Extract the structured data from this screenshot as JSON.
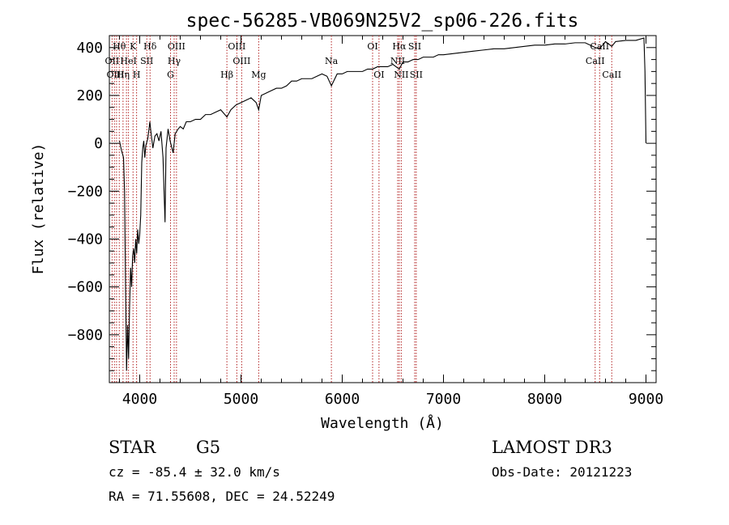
{
  "chart_data": {
    "type": "line",
    "title": "spec-56285-VB069N25V2_sp06-226.fits",
    "xlabel": "Wavelength (Å)",
    "ylabel": "Flux (relative)",
    "xlim": [
      3700,
      9100
    ],
    "ylim": [
      -1000,
      450
    ],
    "x_ticks": [
      4000,
      5000,
      6000,
      7000,
      8000,
      9000
    ],
    "y_ticks": [
      400,
      200,
      0,
      -200,
      -400,
      -600,
      -800
    ],
    "grid": false,
    "line_color": "#000000",
    "marker_color": "#b22222",
    "series": [
      {
        "points": [
          [
            3800,
            10
          ],
          [
            3820,
            -30
          ],
          [
            3840,
            -60
          ],
          [
            3850,
            -200
          ],
          [
            3860,
            -600
          ],
          [
            3870,
            -950
          ],
          [
            3880,
            -760
          ],
          [
            3890,
            -900
          ],
          [
            3900,
            -680
          ],
          [
            3910,
            -520
          ],
          [
            3920,
            -600
          ],
          [
            3930,
            -470
          ],
          [
            3940,
            -440
          ],
          [
            3950,
            -500
          ],
          [
            3960,
            -400
          ],
          [
            3970,
            -460
          ],
          [
            3980,
            -360
          ],
          [
            3990,
            -420
          ],
          [
            4000,
            -380
          ],
          [
            4010,
            -300
          ],
          [
            4020,
            -80
          ],
          [
            4030,
            -20
          ],
          [
            4040,
            10
          ],
          [
            4050,
            -60
          ],
          [
            4060,
            -10
          ],
          [
            4080,
            20
          ],
          [
            4100,
            90
          ],
          [
            4110,
            50
          ],
          [
            4130,
            -20
          ],
          [
            4150,
            30
          ],
          [
            4170,
            40
          ],
          [
            4190,
            10
          ],
          [
            4210,
            50
          ],
          [
            4230,
            -60
          ],
          [
            4250,
            -330
          ],
          [
            4260,
            -20
          ],
          [
            4280,
            60
          ],
          [
            4300,
            10
          ],
          [
            4330,
            -40
          ],
          [
            4350,
            40
          ],
          [
            4380,
            60
          ],
          [
            4400,
            70
          ],
          [
            4430,
            60
          ],
          [
            4460,
            90
          ],
          [
            4500,
            90
          ],
          [
            4550,
            100
          ],
          [
            4600,
            100
          ],
          [
            4650,
            120
          ],
          [
            4700,
            120
          ],
          [
            4750,
            130
          ],
          [
            4800,
            140
          ],
          [
            4861,
            110
          ],
          [
            4900,
            140
          ],
          [
            4950,
            160
          ],
          [
            5000,
            170
          ],
          [
            5050,
            180
          ],
          [
            5100,
            190
          ],
          [
            5150,
            170
          ],
          [
            5175,
            140
          ],
          [
            5200,
            200
          ],
          [
            5250,
            210
          ],
          [
            5300,
            220
          ],
          [
            5350,
            230
          ],
          [
            5400,
            230
          ],
          [
            5450,
            240
          ],
          [
            5500,
            260
          ],
          [
            5550,
            260
          ],
          [
            5600,
            270
          ],
          [
            5650,
            270
          ],
          [
            5700,
            270
          ],
          [
            5750,
            280
          ],
          [
            5800,
            290
          ],
          [
            5850,
            280
          ],
          [
            5893,
            240
          ],
          [
            5950,
            290
          ],
          [
            6000,
            290
          ],
          [
            6050,
            300
          ],
          [
            6100,
            300
          ],
          [
            6150,
            300
          ],
          [
            6200,
            300
          ],
          [
            6250,
            310
          ],
          [
            6300,
            310
          ],
          [
            6350,
            320
          ],
          [
            6400,
            320
          ],
          [
            6450,
            320
          ],
          [
            6500,
            330
          ],
          [
            6563,
            310
          ],
          [
            6600,
            340
          ],
          [
            6650,
            340
          ],
          [
            6700,
            350
          ],
          [
            6750,
            350
          ],
          [
            6800,
            360
          ],
          [
            6850,
            360
          ],
          [
            6900,
            360
          ],
          [
            6950,
            370
          ],
          [
            7000,
            370
          ],
          [
            7100,
            375
          ],
          [
            7200,
            380
          ],
          [
            7300,
            385
          ],
          [
            7400,
            390
          ],
          [
            7500,
            395
          ],
          [
            7600,
            395
          ],
          [
            7700,
            400
          ],
          [
            7800,
            405
          ],
          [
            7900,
            410
          ],
          [
            8000,
            410
          ],
          [
            8100,
            415
          ],
          [
            8200,
            415
          ],
          [
            8300,
            420
          ],
          [
            8400,
            420
          ],
          [
            8498,
            400
          ],
          [
            8542,
            395
          ],
          [
            8600,
            425
          ],
          [
            8662,
            405
          ],
          [
            8700,
            425
          ],
          [
            8800,
            430
          ],
          [
            8900,
            430
          ],
          [
            8980,
            440
          ],
          [
            8990,
            300
          ],
          [
            9000,
            0
          ]
        ]
      }
    ],
    "lines": [
      {
        "x": 3727,
        "labels": [
          "OII"
        ]
      },
      {
        "x": 3750,
        "labels": [
          "Hθ"
        ]
      },
      {
        "x": 3771,
        "labels": [
          "Hη"
        ]
      },
      {
        "x": 3798,
        "labels": [
          "Hθ"
        ]
      },
      {
        "x": 3835,
        "labels": [
          "Hη"
        ]
      },
      {
        "x": 3869,
        "labels": [
          "NeIII"
        ]
      },
      {
        "x": 3889,
        "labels": [
          "HeI"
        ]
      },
      {
        "x": 3934,
        "labels": [
          "K"
        ]
      },
      {
        "x": 3969,
        "labels": [
          "H"
        ]
      },
      {
        "x": 4070,
        "labels": [
          "SII"
        ]
      },
      {
        "x": 4102,
        "labels": [
          "Hδ"
        ]
      },
      {
        "x": 4304,
        "labels": [
          "G"
        ]
      },
      {
        "x": 4340,
        "labels": [
          "Hγ"
        ]
      },
      {
        "x": 4363,
        "labels": [
          "OIII"
        ]
      },
      {
        "x": 4861,
        "labels": [
          "Hβ"
        ]
      },
      {
        "x": 4959,
        "labels": [
          "OIII"
        ]
      },
      {
        "x": 5007,
        "labels": [
          "OIII"
        ]
      },
      {
        "x": 5175,
        "labels": [
          "Mg"
        ]
      },
      {
        "x": 5893,
        "labels": [
          "Na"
        ]
      },
      {
        "x": 6300,
        "labels": [
          "OI"
        ]
      },
      {
        "x": 6363,
        "labels": [
          "OI"
        ]
      },
      {
        "x": 6548,
        "labels": [
          "NII"
        ]
      },
      {
        "x": 6563,
        "labels": [
          "Hα"
        ]
      },
      {
        "x": 6583,
        "labels": [
          "NII"
        ]
      },
      {
        "x": 6716,
        "labels": [
          "SII"
        ]
      },
      {
        "x": 6731,
        "labels": [
          "SII"
        ]
      },
      {
        "x": 8498,
        "labels": [
          "CaII"
        ]
      },
      {
        "x": 8542,
        "labels": [
          "CaII"
        ]
      },
      {
        "x": 8662,
        "labels": [
          "CaII"
        ]
      }
    ],
    "line_labels": [
      {
        "text": "Hθ",
        "x": 3798,
        "row": 0
      },
      {
        "text": "K",
        "x": 3934,
        "row": 0
      },
      {
        "text": "Hδ",
        "x": 4102,
        "row": 0
      },
      {
        "text": "OIII",
        "x": 4363,
        "row": 0
      },
      {
        "text": "OIII",
        "x": 4959,
        "row": 0
      },
      {
        "text": "OI",
        "x": 6300,
        "row": 0
      },
      {
        "text": "Hα",
        "x": 6563,
        "row": 0
      },
      {
        "text": "SII",
        "x": 6716,
        "row": 0
      },
      {
        "text": "CaII",
        "x": 8542,
        "row": 0
      },
      {
        "text": "OII",
        "x": 3727,
        "row": 1
      },
      {
        "text": "HeI",
        "x": 3889,
        "row": 1
      },
      {
        "text": "SII",
        "x": 4070,
        "row": 1
      },
      {
        "text": "Hγ",
        "x": 4340,
        "row": 1
      },
      {
        "text": "OIII",
        "x": 5007,
        "row": 1
      },
      {
        "text": "Na",
        "x": 5893,
        "row": 1
      },
      {
        "text": "NII",
        "x": 6548,
        "row": 1
      },
      {
        "text": "CaII",
        "x": 8498,
        "row": 1
      },
      {
        "text": "OIII",
        "x": 3760,
        "row": 2
      },
      {
        "text": "Hη",
        "x": 3835,
        "row": 2
      },
      {
        "text": "H",
        "x": 3969,
        "row": 2
      },
      {
        "text": "G",
        "x": 4304,
        "row": 2
      },
      {
        "text": "Hβ",
        "x": 4861,
        "row": 2
      },
      {
        "text": "Mg",
        "x": 5175,
        "row": 2
      },
      {
        "text": "OI",
        "x": 6363,
        "row": 2
      },
      {
        "text": "NII",
        "x": 6583,
        "row": 2
      },
      {
        "text": "SII",
        "x": 6731,
        "row": 2
      },
      {
        "text": "CaII",
        "x": 8662,
        "row": 2
      }
    ]
  },
  "footer": {
    "class_label": "STAR",
    "subclass": "G5",
    "survey": "LAMOST DR3",
    "cz": "cz = -85.4 ± 32.0 km/s",
    "obs_date": "Obs-Date: 20121223",
    "coords": "RA =  71.55608, DEC =  24.52249"
  }
}
